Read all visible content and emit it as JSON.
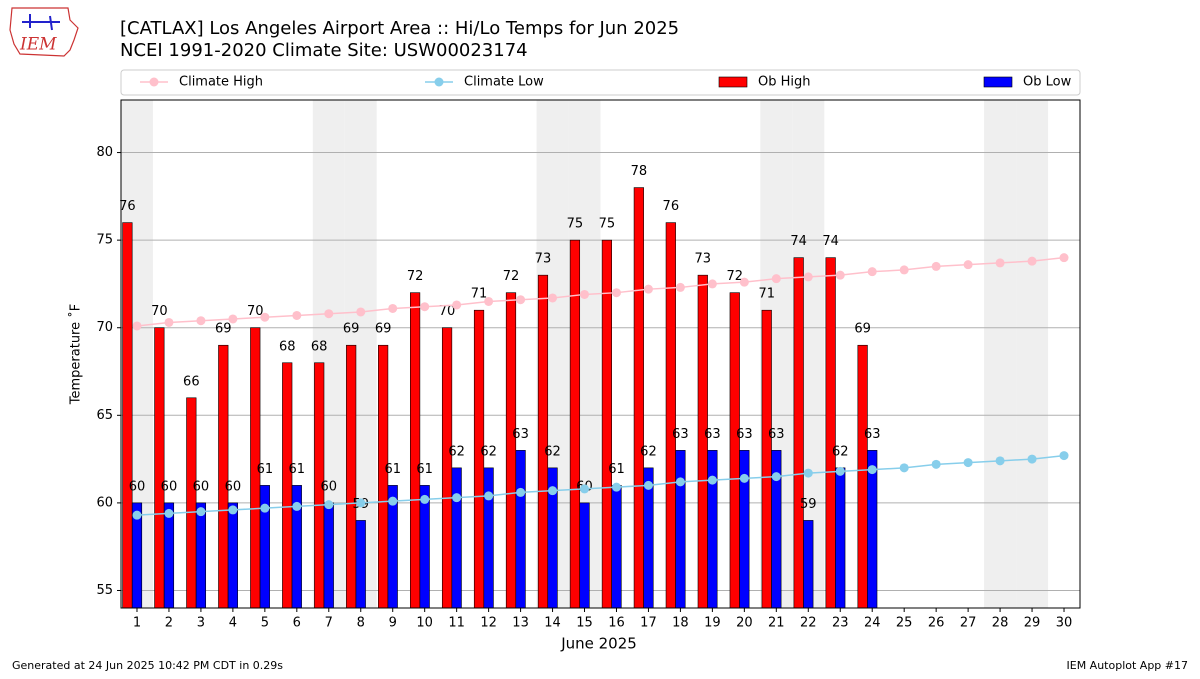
{
  "chart_data": {
    "type": "bar_line",
    "title": "[CATLAX] Los Angeles Airport Area :: Hi/Lo Temps for Jun 2025",
    "subtitle": "NCEI 1991-2020 Climate Site: USW00023174",
    "x_label": "June 2025",
    "y_label": "Temperature ˚F",
    "logo_text": "IEM",
    "footer_left": "Generated at 24 Jun 2025 10:42 PM CDT in 0.29s",
    "footer_right": "IEM Autoplot App #17",
    "x": [
      1,
      2,
      3,
      4,
      5,
      6,
      7,
      8,
      9,
      10,
      11,
      12,
      13,
      14,
      15,
      16,
      17,
      18,
      19,
      20,
      21,
      22,
      23,
      24,
      25,
      26,
      27,
      28,
      29,
      30
    ],
    "xlim": [
      0.5,
      30.5
    ],
    "xticks": [
      1,
      2,
      3,
      4,
      5,
      6,
      7,
      8,
      9,
      10,
      11,
      12,
      13,
      14,
      15,
      16,
      17,
      18,
      19,
      20,
      21,
      22,
      23,
      24,
      25,
      26,
      27,
      28,
      29,
      30
    ],
    "ylim": [
      54,
      83
    ],
    "yticks": [
      55,
      60,
      65,
      70,
      75,
      80
    ],
    "grid": true,
    "shaded_days": [
      1,
      7,
      8,
      14,
      15,
      21,
      22,
      28,
      29
    ],
    "shade_color": "#efefef",
    "series": [
      {
        "name": "Climate High",
        "kind": "line",
        "color": "#ffc0cb",
        "values": [
          70.1,
          70.3,
          70.4,
          70.5,
          70.6,
          70.7,
          70.8,
          70.9,
          71.1,
          71.2,
          71.3,
          71.5,
          71.6,
          71.7,
          71.9,
          72.0,
          72.2,
          72.3,
          72.5,
          72.6,
          72.8,
          72.9,
          73.0,
          73.2,
          73.3,
          73.5,
          73.6,
          73.7,
          73.8,
          74.0
        ]
      },
      {
        "name": "Climate Low",
        "kind": "line",
        "color": "#87ceeb",
        "values": [
          59.3,
          59.4,
          59.5,
          59.6,
          59.7,
          59.8,
          59.9,
          60.0,
          60.1,
          60.2,
          60.3,
          60.4,
          60.6,
          60.7,
          60.8,
          60.9,
          61.0,
          61.2,
          61.3,
          61.4,
          61.5,
          61.7,
          61.8,
          61.9,
          62.0,
          62.2,
          62.3,
          62.4,
          62.5,
          62.7
        ]
      },
      {
        "name": "Ob High",
        "kind": "bar",
        "color": "#ff0000",
        "values": [
          76,
          70,
          66,
          69,
          70,
          68,
          68,
          69,
          69,
          72,
          70,
          71,
          72,
          73,
          75,
          75,
          78,
          76,
          73,
          72,
          71,
          74,
          74,
          69,
          null,
          null,
          null,
          null,
          null,
          null
        ]
      },
      {
        "name": "Ob Low",
        "kind": "bar",
        "color": "#0000ff",
        "values": [
          60,
          60,
          60,
          60,
          61,
          61,
          60,
          59,
          61,
          61,
          62,
          62,
          63,
          62,
          60,
          61,
          62,
          63,
          63,
          63,
          63,
          59,
          62,
          63,
          null,
          null,
          null,
          null,
          null,
          null
        ]
      }
    ]
  }
}
